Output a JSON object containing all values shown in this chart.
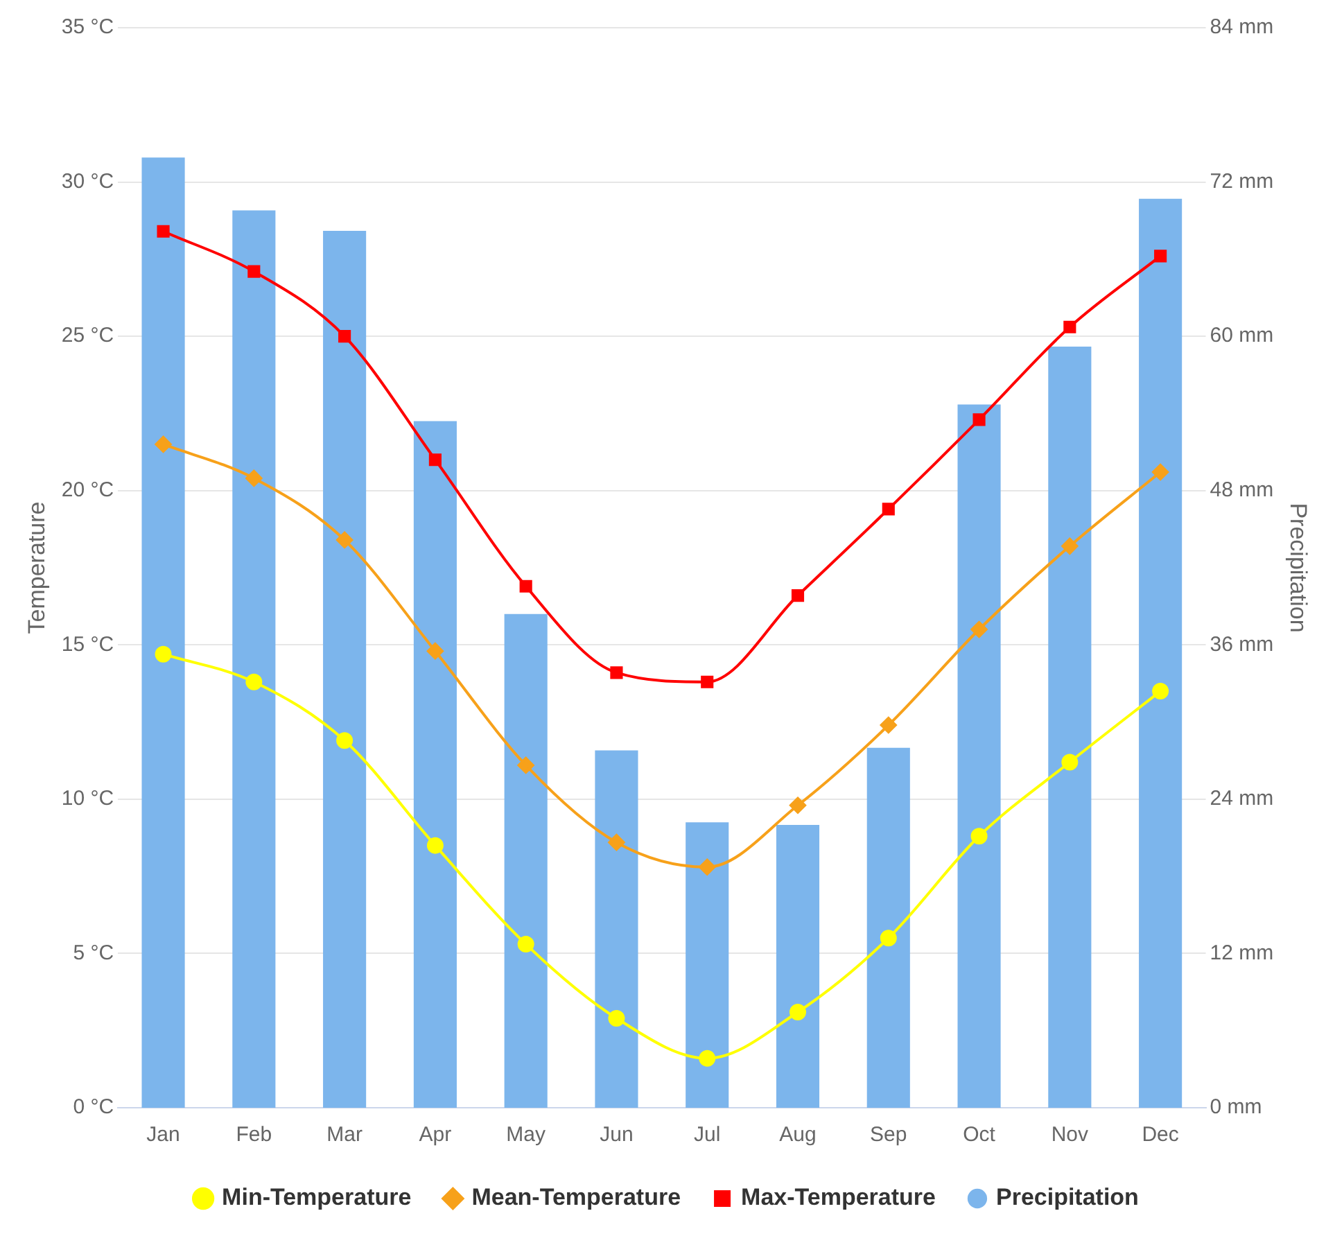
{
  "chart_data": {
    "type": "line",
    "categories": [
      "Jan",
      "Feb",
      "Mar",
      "Apr",
      "May",
      "Jun",
      "Jul",
      "Aug",
      "Sep",
      "Oct",
      "Nov",
      "Dec"
    ],
    "ylabel": "Temperature",
    "y2label": "Precipitation",
    "ylim": [
      0,
      35
    ],
    "yticks": [
      {
        "value": 0,
        "label": "0 °C"
      },
      {
        "value": 5,
        "label": "5 °C"
      },
      {
        "value": 10,
        "label": "10 °C"
      },
      {
        "value": 15,
        "label": "15 °C"
      },
      {
        "value": 20,
        "label": "20 °C"
      },
      {
        "value": 25,
        "label": "25 °C"
      },
      {
        "value": 30,
        "label": "30 °C"
      },
      {
        "value": 35,
        "label": "35 °C"
      }
    ],
    "y2lim": [
      0,
      84
    ],
    "y2ticks": [
      {
        "value": 0,
        "label": "0 mm"
      },
      {
        "value": 12,
        "label": "12 mm"
      },
      {
        "value": 24,
        "label": "24 mm"
      },
      {
        "value": 36,
        "label": "36 mm"
      },
      {
        "value": 48,
        "label": "48 mm"
      },
      {
        "value": 60,
        "label": "60 mm"
      },
      {
        "value": 72,
        "label": "72 mm"
      },
      {
        "value": 84,
        "label": "84 mm"
      }
    ],
    "grid": "y",
    "legend": "bottom",
    "series": [
      {
        "name": "Min-Temperature",
        "marker": "circle",
        "color": "#ffff00",
        "values": [
          14.7,
          13.8,
          11.9,
          8.5,
          5.3,
          2.9,
          1.6,
          3.1,
          5.5,
          8.8,
          11.2,
          13.5
        ]
      },
      {
        "name": "Mean-Temperature",
        "marker": "diamond",
        "color": "#f7a11a",
        "values": [
          21.5,
          20.4,
          18.4,
          14.8,
          11.1,
          8.6,
          7.8,
          9.8,
          12.4,
          15.5,
          18.2,
          20.6
        ]
      },
      {
        "name": "Max-Temperature",
        "marker": "square",
        "color": "#ff0000",
        "values": [
          28.4,
          27.1,
          25.0,
          21.0,
          16.9,
          14.1,
          13.8,
          16.6,
          19.4,
          22.3,
          25.3,
          27.6
        ]
      },
      {
        "name": "Precipitation",
        "type": "bar",
        "axis": "y2",
        "color": "#7cb5ec",
        "values": [
          73.9,
          69.8,
          68.2,
          53.4,
          38.4,
          27.8,
          22.2,
          22.0,
          28.0,
          54.7,
          59.2,
          70.7
        ]
      }
    ]
  }
}
